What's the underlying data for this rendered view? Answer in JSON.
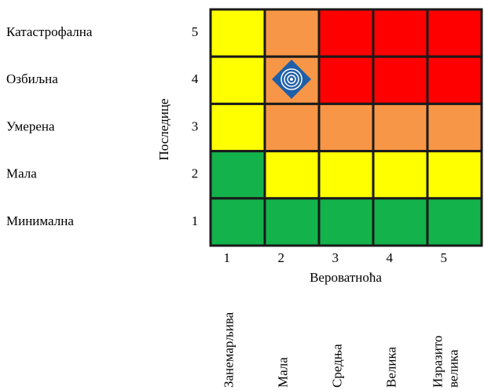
{
  "matrix": {
    "y_axis_title": "Последице",
    "x_axis_title": "Вероватноћа",
    "rows": [
      {
        "label": "Катастрофална",
        "level": "5",
        "colors": [
          "#ffff00",
          "#f79646",
          "#ff0000",
          "#ff0000",
          "#ff0000"
        ]
      },
      {
        "label": "Озбиљна",
        "level": "4",
        "colors": [
          "#ffff00",
          "#f79646",
          "#ff0000",
          "#ff0000",
          "#ff0000"
        ]
      },
      {
        "label": "Умерена",
        "level": "3",
        "colors": [
          "#ffff00",
          "#f79646",
          "#f79646",
          "#f79646",
          "#f79646"
        ]
      },
      {
        "label": "Мала",
        "level": "2",
        "colors": [
          "#13b24b",
          "#ffff00",
          "#ffff00",
          "#ffff00",
          "#ffff00"
        ]
      },
      {
        "label": "Минимална",
        "level": "1",
        "colors": [
          "#13b24b",
          "#13b24b",
          "#13b24b",
          "#13b24b",
          "#13b24b"
        ]
      }
    ],
    "columns": [
      {
        "level": "1",
        "label": [
          "Занемарљива"
        ]
      },
      {
        "level": "2",
        "label": [
          "Мала"
        ]
      },
      {
        "level": "3",
        "label": [
          "Средња"
        ]
      },
      {
        "level": "4",
        "label": [
          "Велика"
        ]
      },
      {
        "level": "5",
        "label": [
          "Изразито",
          "велика"
        ]
      }
    ]
  }
}
